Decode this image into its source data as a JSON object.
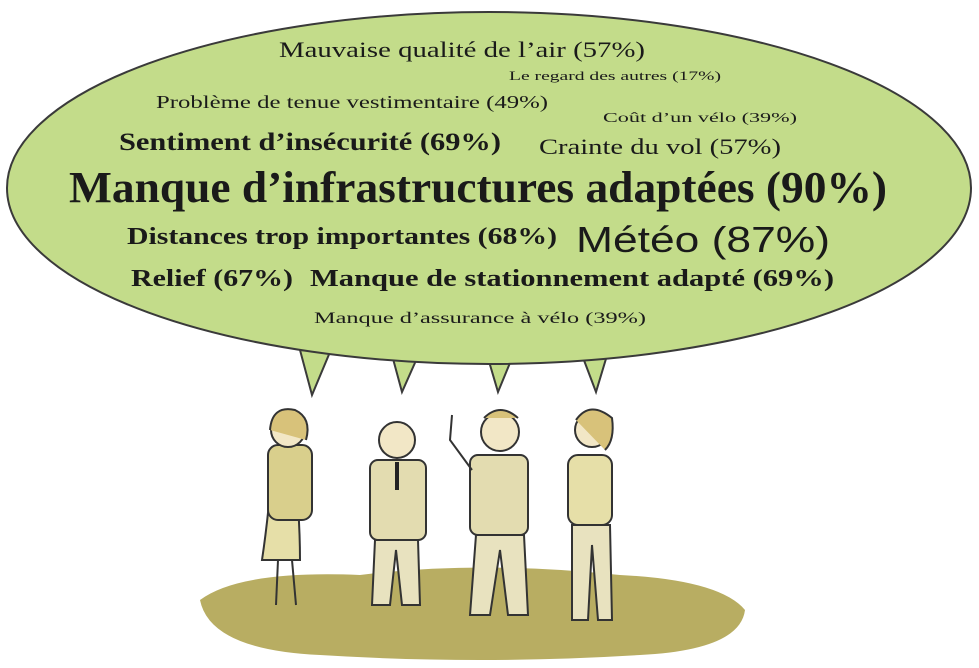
{
  "bubble": {
    "items": [
      "Mauvaise qualité de l’air (57%)",
      "Le regard des autres (17%)",
      "Problème de tenue vestimentaire (49%)",
      "Coût d’un vélo (39%)",
      "Sentiment d’insécurité (69%)",
      "Crainte du vol (57%)",
      "Manque d’infrastructures adaptées (90%)",
      "Distances trop importantes (68%)",
      "Météo (87%)",
      "Relief (67%)",
      "Manque de stationnement adapté (69%)",
      "Manque d’assurance à vélo (39%)"
    ]
  }
}
